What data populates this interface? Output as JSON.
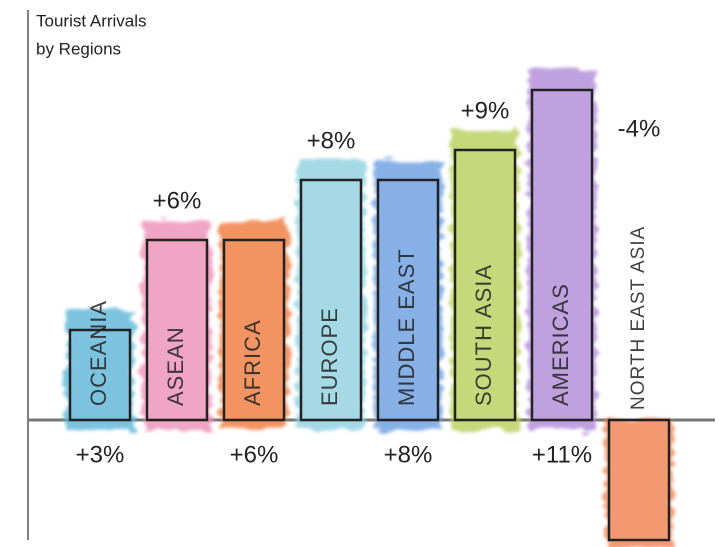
{
  "chart_data": {
    "type": "bar",
    "title": "Tourist Arrivals",
    "subtitle": "by Regions",
    "categories": [
      "OCEANIA",
      "ASEAN",
      "AFRICA",
      "EUROPE",
      "MIDDLE EAST",
      "SOUTH ASIA",
      "AMERICAS",
      "NORTH EAST ASIA"
    ],
    "values": [
      3,
      6,
      6,
      8,
      8,
      9,
      11,
      -4
    ],
    "value_labels": [
      "+3%",
      "+6%",
      "+6%",
      "+8%",
      "+8%",
      "+9%",
      "+11%",
      "-4%"
    ],
    "colors": [
      "#5bb5d8",
      "#ec8fb5",
      "#f07a3a",
      "#8fd0e0",
      "#6a9ee0",
      "#b8cf5a",
      "#b08ad8",
      "#f08050"
    ],
    "negative_label_color": "#d81b60"
  }
}
